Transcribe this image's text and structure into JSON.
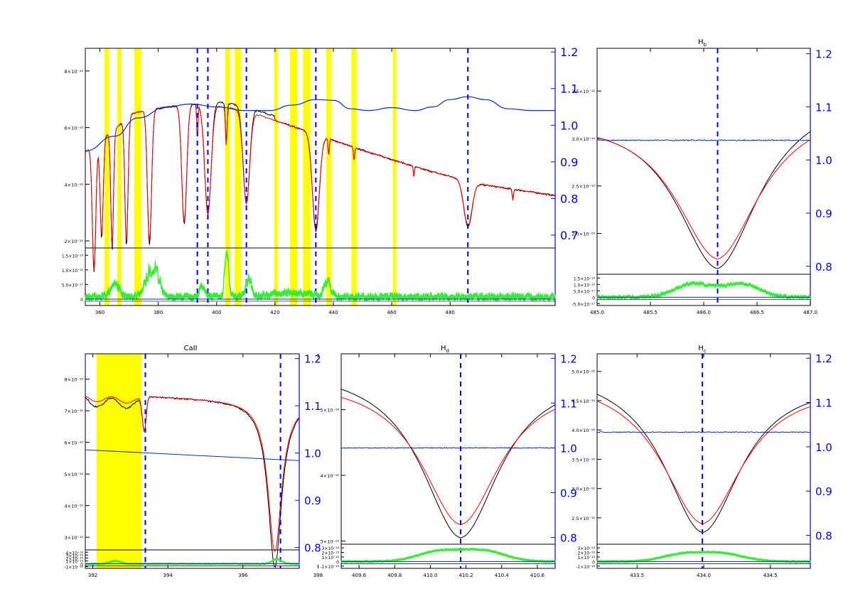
{
  "colors": {
    "observed": "#000000",
    "model": "#ff0000",
    "ratio": "#0030c0",
    "residual": "#33ee33",
    "mask": "#ffff00",
    "marker": "#0000ee",
    "axis_right": "#0000dd"
  },
  "chart_data": [
    {
      "id": "full",
      "type": "line",
      "title": "",
      "xlim": [
        355,
        516
      ],
      "ylim": [
        1.75e-16,
        8.8e-16
      ],
      "right_ylim": [
        0.665,
        1.21
      ],
      "resid_ylim": [
        -2.2e-17,
        1.75e-16
      ],
      "xticks": [
        "360",
        "380",
        "400",
        "420",
        "440",
        "460",
        "480"
      ],
      "xtick_values": [
        360,
        380,
        400,
        420,
        440,
        460,
        480
      ],
      "yticks": [
        "2×10⁻¹⁶",
        "4×10⁻¹⁶",
        "6×10⁻¹⁶",
        "8×10⁻¹⁶"
      ],
      "ytick_values": [
        2e-16,
        4e-16,
        6e-16,
        8e-16
      ],
      "right_yticks": [
        "0.7",
        "0.8",
        "0.9",
        "1.0",
        "1.1",
        "1.2"
      ],
      "right_ytick_values": [
        0.7,
        0.8,
        0.9,
        1.0,
        1.1,
        1.2
      ],
      "resid_yticks": [
        "0",
        "5.0×10⁻¹⁷",
        "1.0×10⁻¹⁶",
        "1.5×10⁻¹⁶"
      ],
      "resid_ytick_values": [
        0,
        5e-17,
        1e-16,
        1.5e-16
      ],
      "markers": [
        393.4,
        397.0,
        410.2,
        434.0,
        486.1
      ],
      "masks": [
        [
          361.6,
          363.2
        ],
        [
          366.0,
          367.4
        ],
        [
          371.8,
          374.2
        ],
        [
          403.0,
          404.6
        ],
        [
          406.2,
          408.4
        ],
        [
          419.8,
          421.0
        ],
        [
          425.2,
          427.6
        ],
        [
          429.6,
          432.2
        ],
        [
          437.6,
          439.4
        ],
        [
          446.2,
          448.0
        ],
        [
          460.4,
          461.6
        ]
      ],
      "continuum": [
        [
          355,
          6.1e-16
        ],
        [
          365,
          6.3e-16
        ],
        [
          375,
          6.6e-16
        ],
        [
          385,
          6.75e-16
        ],
        [
          395,
          6.85e-16
        ],
        [
          410,
          6.6e-16
        ],
        [
          430,
          5.9e-16
        ],
        [
          450,
          5.2e-16
        ],
        [
          470,
          4.55e-16
        ],
        [
          490,
          4e-16
        ],
        [
          516,
          3.6e-16
        ]
      ],
      "lines": [
        [
          358,
          1.7,
          4.5e-16
        ],
        [
          360.6,
          1.5,
          3.5e-16
        ],
        [
          364.2,
          1.3,
          4.2e-16
        ],
        [
          369.1,
          1.5,
          4.5e-16
        ],
        [
          377,
          2.0,
          4.8e-16
        ],
        [
          388.9,
          2.4,
          4.2e-16
        ],
        [
          397.0,
          3.2,
          4e-16
        ],
        [
          410.2,
          3.2,
          3.4e-16
        ],
        [
          434.0,
          3.4,
          3.4e-16
        ],
        [
          486.1,
          4.0,
          1.6e-16
        ],
        [
          393.4,
          0.6,
          1.2e-16
        ],
        [
          403.3,
          0.8,
          1.4e-16
        ],
        [
          438.4,
          0.6,
          6e-17
        ],
        [
          447.1,
          0.6,
          5e-17
        ],
        [
          501.5,
          0.6,
          4e-17
        ],
        [
          467.6,
          0.5,
          4e-17
        ]
      ],
      "ratio_points": [
        [
          355,
          0.93
        ],
        [
          365,
          0.97
        ],
        [
          373,
          1.02
        ],
        [
          383,
          1.05
        ],
        [
          391,
          1.058
        ],
        [
          400,
          1.05
        ],
        [
          410,
          1.04
        ],
        [
          418,
          1.04
        ],
        [
          426,
          1.055
        ],
        [
          434,
          1.07
        ],
        [
          440,
          1.068
        ],
        [
          446,
          1.045
        ],
        [
          452,
          1.04
        ],
        [
          460,
          1.048
        ],
        [
          468,
          1.04
        ],
        [
          474,
          1.05
        ],
        [
          480,
          1.07
        ],
        [
          486,
          1.078
        ],
        [
          492,
          1.07
        ],
        [
          500,
          1.045
        ],
        [
          508,
          1.04
        ],
        [
          516,
          1.04
        ]
      ],
      "resid_bumps": [
        [
          378,
          2.0,
          1.2e-16
        ],
        [
          365,
          1.5,
          5e-17
        ],
        [
          403.5,
          0.7,
          1.5e-16
        ],
        [
          411,
          1.0,
          6e-17
        ],
        [
          395,
          1.0,
          4e-17
        ],
        [
          425,
          6.0,
          1.5e-17
        ],
        [
          438,
          1.2,
          5e-17
        ]
      ]
    },
    {
      "id": "hb",
      "type": "line",
      "title": "Hb",
      "xlim": [
        485.0,
        487.0
      ],
      "ylim": [
        1.57e-16,
        3.95e-16
      ],
      "right_ylim": [
        0.785,
        1.21
      ],
      "resid_ylim": [
        -6.5e-17,
        1.8e-16
      ],
      "xticks": [
        "485.0",
        "485.5",
        "486.0",
        "486.5",
        "487.0"
      ],
      "xtick_values": [
        485.0,
        485.5,
        486.0,
        486.5,
        487.0
      ],
      "yticks": [
        "2.0×10⁻¹⁶",
        "2.5×10⁻¹⁶",
        "3.0×10⁻¹⁶",
        "3.5×10⁻¹⁶"
      ],
      "ytick_values": [
        2e-16,
        2.5e-16,
        3e-16,
        3.5e-16
      ],
      "right_yticks": [
        "0.8",
        "0.9",
        "1.0",
        "1.1",
        "1.2"
      ],
      "right_ytick_values": [
        0.8,
        0.9,
        1.0,
        1.1,
        1.2
      ],
      "resid_yticks": [
        "-5.0×10⁻¹⁷",
        "0",
        "5.0×10⁻¹⁷",
        "1.0×10⁻¹⁶",
        "1.5×10⁻¹⁶"
      ],
      "resid_ytick_values": [
        -5e-17,
        0,
        5e-17,
        1e-16,
        1.5e-16
      ],
      "markers": [
        486.13
      ],
      "masks": [],
      "center": 486.13,
      "obs_curve": {
        "cont": 3.35e-16,
        "slope": 1e-17,
        "depth": 1.72e-16,
        "width": 0.54
      },
      "mod_curve": {
        "cont": 3.28e-16,
        "slope": 5e-18,
        "depth": 1.55e-16,
        "width": 0.55
      },
      "ratio_level": 1.037,
      "resid_peaks": [
        [
          485.9,
          1.05e-16,
          0.17
        ],
        [
          486.35,
          1.05e-16,
          0.17
        ]
      ]
    },
    {
      "id": "caii",
      "type": "line",
      "title": "CaII",
      "xlim": [
        391.8,
        397.5
      ],
      "ylim": [
        2.6e-16,
        8.8e-16
      ],
      "right_ylim": [
        0.795,
        1.21
      ],
      "resid_ylim": [
        -1.6e-16,
        4.8e-16
      ],
      "xticks": [
        "392",
        "394",
        "396",
        "398"
      ],
      "xtick_values": [
        392,
        394,
        396,
        398
      ],
      "yticks": [
        "3×10⁻¹⁶",
        "4×10⁻¹⁶",
        "5×10⁻¹⁶",
        "6×10⁻¹⁶",
        "7×10⁻¹⁶",
        "8×10⁻¹⁶"
      ],
      "ytick_values": [
        3e-16,
        4e-16,
        5e-16,
        6e-16,
        7e-16,
        8e-16
      ],
      "right_yticks": [
        "0.8",
        "0.9",
        "1.0",
        "1.1",
        "1.2"
      ],
      "right_ytick_values": [
        0.8,
        0.9,
        1.0,
        1.1,
        1.2
      ],
      "resid_yticks": [
        "-1×10⁻¹⁶",
        "0",
        "1×10⁻¹⁶",
        "2×10⁻¹⁶",
        "3×10⁻¹⁶",
        "4×10⁻¹⁶"
      ],
      "resid_ytick_values": [
        -1e-16,
        0,
        1e-16,
        2e-16,
        3e-16,
        4e-16
      ],
      "markers": [
        393.4,
        397.0
      ],
      "masks": [
        [
          392.1,
          393.3
        ]
      ],
      "note": "plotted axis labels: 392 394 396 398 over 391.8-397.5 (axis ticks drawn at positions shown)"
    },
    {
      "id": "hd",
      "type": "line",
      "title": "Hd",
      "xlim": [
        409.5,
        410.7
      ],
      "ylim": [
        2.95e-16,
        5.85e-16
      ],
      "right_ylim": [
        0.785,
        1.21
      ],
      "resid_ylim": [
        -1.5e-16,
        3.8e-16
      ],
      "xticks": [
        "409.6",
        "409.8",
        "410.0",
        "410.2",
        "410.4",
        "410.6"
      ],
      "xtick_values": [
        409.6,
        409.8,
        410.0,
        410.2,
        410.4,
        410.6
      ],
      "yticks": [
        "3×10⁻¹⁶",
        "4×10⁻¹⁶",
        "5×10⁻¹⁶"
      ],
      "ytick_values": [
        3e-16,
        4e-16,
        5e-16
      ],
      "right_yticks": [
        "0.8",
        "0.9",
        "1.0",
        "1.1",
        "1.2"
      ],
      "right_ytick_values": [
        0.8,
        0.9,
        1.0,
        1.1,
        1.2
      ],
      "resid_yticks": [
        "-1×10⁻¹⁶",
        "0",
        "1×10⁻¹⁶",
        "2×10⁻¹⁶",
        "3×10⁻¹⁶"
      ],
      "resid_ytick_values": [
        -1e-16,
        0,
        1e-16,
        2e-16,
        3e-16
      ],
      "markers": [
        410.17
      ],
      "masks": [],
      "center": 410.17,
      "obs_curve": {
        "cont": 5.6e-16,
        "slope": -6e-18,
        "depth": 2.55e-16,
        "width": 0.3
      },
      "mod_curve": {
        "cont": 5.45e-16,
        "slope": -3e-18,
        "depth": 2.2e-16,
        "width": 0.3
      },
      "ratio_level": 1.0,
      "resid_peaks": [
        [
          410.05,
          2.2e-16,
          0.12
        ],
        [
          410.3,
          2.3e-16,
          0.12
        ]
      ]
    },
    {
      "id": "hg",
      "type": "line",
      "title": "Hg",
      "xlim": [
        433.2,
        434.8
      ],
      "ylim": [
        2.05e-16,
        5.3e-16
      ],
      "right_ylim": [
        0.78,
        1.21
      ],
      "resid_ylim": [
        -1.5e-16,
        3.8e-16
      ],
      "xticks": [
        "433.5",
        "434.0",
        "434.5"
      ],
      "xtick_values": [
        433.5,
        434.0,
        434.5
      ],
      "yticks": [
        "2.5×10⁻¹⁶",
        "3.0×10⁻¹⁶",
        "3.5×10⁻¹⁶",
        "4.0×10⁻¹⁶",
        "4.5×10⁻¹⁶",
        "5.0×10⁻¹⁶"
      ],
      "ytick_values": [
        2.5e-16,
        3e-16,
        3.5e-16,
        4e-16,
        4.5e-16,
        5e-16
      ],
      "right_yticks": [
        "0.8",
        "0.9",
        "1.0",
        "1.1",
        "1.2"
      ],
      "right_ytick_values": [
        0.8,
        0.9,
        1.0,
        1.1,
        1.2
      ],
      "resid_yticks": [
        "-1×10⁻¹⁶",
        "0",
        "1×10⁻¹⁶",
        "2×10⁻¹⁶",
        "3×10⁻¹⁶"
      ],
      "resid_ytick_values": [
        -1e-16,
        0,
        1e-16,
        2e-16,
        3e-16
      ],
      "markers": [
        433.99
      ],
      "masks": [],
      "center": 433.99,
      "obs_curve": {
        "cont": 4.95e-16,
        "slope": -1e-17,
        "depth": 2.7e-16,
        "width": 0.4
      },
      "mod_curve": {
        "cont": 4.85e-16,
        "slope": -7e-18,
        "depth": 2.45e-16,
        "width": 0.42
      },
      "ratio_level": 1.033,
      "resid_peaks": [
        [
          433.85,
          1.6e-16,
          0.16
        ],
        [
          434.15,
          1.6e-16,
          0.16
        ]
      ]
    }
  ]
}
